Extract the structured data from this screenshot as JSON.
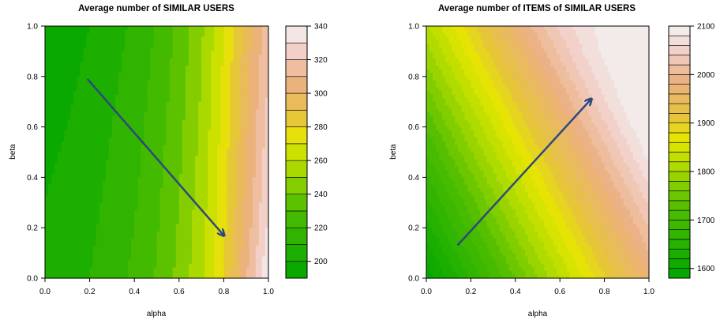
{
  "chart_data": [
    {
      "type": "heatmap",
      "subtype": "filled-contour",
      "title": "Average number of SIMILAR USERS",
      "xlabel": "alpha",
      "ylabel": "beta",
      "xlim": [
        0,
        1
      ],
      "ylim": [
        0,
        1
      ],
      "xticks": [
        "0.0",
        "0.2",
        "0.4",
        "0.6",
        "0.8",
        "1.0"
      ],
      "yticks": [
        "0.0",
        "0.2",
        "0.4",
        "0.6",
        "0.8",
        "1.0"
      ],
      "zlim": [
        190,
        340
      ],
      "level_step": 10,
      "colorbar_ticks": [
        "200",
        "220",
        "240",
        "260",
        "280",
        "300",
        "320",
        "340"
      ],
      "arrow": {
        "from": [
          0.19,
          0.79
        ],
        "to": [
          0.8,
          0.17
        ],
        "color": "#2d4a7c"
      },
      "trend": "increases mainly with alpha",
      "x": [
        0.0,
        0.1,
        0.2,
        0.3,
        0.4,
        0.5,
        0.6,
        0.7,
        0.8,
        0.9,
        1.0
      ],
      "y": [
        0.0,
        0.1,
        0.2,
        0.3,
        0.4,
        0.5,
        0.6,
        0.7,
        0.8,
        0.9,
        1.0
      ],
      "z": [
        [
          203,
          206,
          210,
          216,
          222,
          231,
          243,
          258,
          281,
          309,
          339
        ],
        [
          202,
          205,
          209,
          215,
          221,
          230,
          242,
          257,
          279,
          306,
          336
        ],
        [
          201,
          204,
          208,
          214,
          220,
          229,
          241,
          256,
          278,
          304,
          332
        ],
        [
          200,
          203,
          207,
          213,
          219,
          228,
          240,
          255,
          277,
          302,
          330
        ],
        [
          199,
          202,
          206,
          212,
          218,
          227,
          239,
          254,
          276,
          300,
          328
        ],
        [
          198,
          201,
          205,
          211,
          217,
          226,
          238,
          253,
          275,
          299,
          326
        ],
        [
          197,
          200,
          204,
          210,
          216,
          225,
          237,
          252,
          274,
          298,
          324
        ],
        [
          196,
          199,
          203,
          209,
          215,
          224,
          236,
          251,
          273,
          297,
          322
        ],
        [
          195,
          198,
          202,
          208,
          214,
          223,
          235,
          250,
          272,
          296,
          320
        ],
        [
          194,
          197,
          201,
          207,
          213,
          222,
          234,
          249,
          271,
          295,
          318
        ],
        [
          193,
          196,
          200,
          206,
          212,
          221,
          233,
          248,
          270,
          294,
          316
        ]
      ]
    },
    {
      "type": "heatmap",
      "subtype": "filled-contour",
      "title": "Average number of ITEMS of SIMILAR USERS",
      "xlabel": "alpha",
      "ylabel": "beta",
      "xlim": [
        0,
        1
      ],
      "ylim": [
        0,
        1
      ],
      "xticks": [
        "0.0",
        "0.2",
        "0.4",
        "0.6",
        "0.8",
        "1.0"
      ],
      "yticks": [
        "0.0",
        "0.2",
        "0.4",
        "0.6",
        "0.8",
        "1.0"
      ],
      "zlim": [
        1580,
        2100
      ],
      "level_step": 20,
      "colorbar_ticks": [
        "1600",
        "1700",
        "1800",
        "1900",
        "2000",
        "2100"
      ],
      "arrow": {
        "from": [
          0.14,
          0.13
        ],
        "to": [
          0.74,
          0.71
        ],
        "color": "#2d4a7c"
      },
      "trend": "increases with both alpha and beta",
      "x": [
        0.0,
        0.1,
        0.2,
        0.3,
        0.4,
        0.5,
        0.6,
        0.7,
        0.8,
        0.9,
        1.0
      ],
      "y": [
        0.0,
        0.1,
        0.2,
        0.3,
        0.4,
        0.5,
        0.6,
        0.7,
        0.8,
        0.9,
        1.0
      ],
      "z": [
        [
          1585,
          1624,
          1663,
          1702,
          1741,
          1780,
          1819,
          1858,
          1897,
          1936,
          1975
        ],
        [
          1608,
          1647,
          1686,
          1725,
          1764,
          1803,
          1842,
          1881,
          1920,
          1959,
          1998
        ],
        [
          1631,
          1670,
          1709,
          1748,
          1787,
          1826,
          1865,
          1904,
          1943,
          1982,
          2021
        ],
        [
          1654,
          1693,
          1732,
          1771,
          1810,
          1849,
          1888,
          1927,
          1966,
          2005,
          2044
        ],
        [
          1677,
          1716,
          1755,
          1794,
          1833,
          1872,
          1911,
          1950,
          1989,
          2028,
          2067
        ],
        [
          1700,
          1739,
          1778,
          1817,
          1856,
          1895,
          1934,
          1973,
          2012,
          2051,
          2090
        ],
        [
          1723,
          1762,
          1801,
          1840,
          1879,
          1918,
          1957,
          1996,
          2035,
          2074,
          2098
        ],
        [
          1746,
          1785,
          1824,
          1863,
          1902,
          1941,
          1980,
          2019,
          2058,
          2090,
          2099
        ],
        [
          1769,
          1808,
          1847,
          1886,
          1925,
          1964,
          2003,
          2042,
          2075,
          2095,
          2099
        ],
        [
          1792,
          1831,
          1870,
          1909,
          1948,
          1987,
          2026,
          2060,
          2085,
          2097,
          2099
        ],
        [
          1815,
          1854,
          1893,
          1932,
          1971,
          2010,
          2045,
          2070,
          2090,
          2098,
          2099
        ]
      ]
    }
  ]
}
